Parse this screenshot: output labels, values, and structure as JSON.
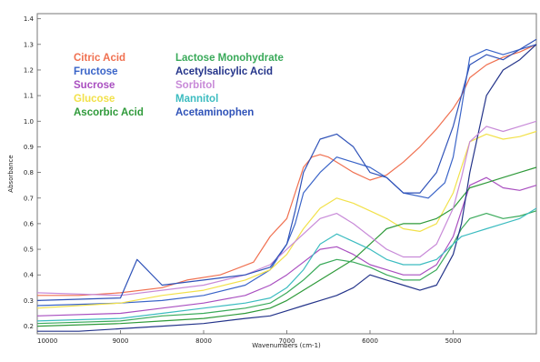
{
  "chart_data": {
    "type": "line",
    "title": "",
    "xlabel": "Wavenumbers (cm-1)",
    "ylabel": "Absorbance",
    "xlim": [
      10000,
      4000
    ],
    "ylim": [
      0.17,
      1.42
    ],
    "x_reversed": true,
    "grid": false,
    "legend_position": "top-left",
    "x_ticks": [
      10000,
      9000,
      8000,
      7000,
      6000,
      5000
    ],
    "x_tick_labels": [
      "10000",
      "9000",
      "8000",
      "7000",
      "6000",
      "5000"
    ],
    "y_ticks": [
      0.2,
      0.3,
      0.4,
      0.5,
      0.6,
      0.7,
      0.8,
      0.9,
      1.0,
      1.1,
      1.2,
      1.3,
      1.4
    ],
    "y_tick_labels": [
      "0.2",
      "0.3",
      "0.4",
      "0.5",
      "0.6",
      "0.7",
      "0.8",
      "0.9",
      "1.0",
      "1.1",
      "1.2",
      "1.3",
      "1.4"
    ],
    "series": [
      {
        "name": "Citric Acid",
        "color": "#f07050",
        "x": [
          10000,
          9500,
          9000,
          8500,
          8200,
          7800,
          7400,
          7200,
          7000,
          6900,
          6800,
          6700,
          6600,
          6500,
          6400,
          6200,
          6000,
          5900,
          5800,
          5600,
          5400,
          5200,
          5000,
          4900,
          4800,
          4600,
          4400,
          4200,
          4000
        ],
        "y": [
          0.32,
          0.32,
          0.33,
          0.35,
          0.38,
          0.4,
          0.45,
          0.55,
          0.62,
          0.72,
          0.82,
          0.86,
          0.87,
          0.86,
          0.84,
          0.8,
          0.77,
          0.78,
          0.79,
          0.84,
          0.9,
          0.97,
          1.05,
          1.1,
          1.17,
          1.22,
          1.25,
          1.27,
          1.3
        ]
      },
      {
        "name": "Fructose",
        "color": "#3a64c8",
        "x": [
          10000,
          9000,
          8500,
          8000,
          7500,
          7200,
          7000,
          6900,
          6800,
          6600,
          6400,
          6200,
          6000,
          5800,
          5600,
          5300,
          5100,
          5000,
          4900,
          4850,
          4800,
          4600,
          4400,
          4200,
          4000
        ],
        "y": [
          0.28,
          0.29,
          0.3,
          0.32,
          0.36,
          0.42,
          0.52,
          0.6,
          0.72,
          0.8,
          0.86,
          0.84,
          0.82,
          0.78,
          0.72,
          0.7,
          0.76,
          0.86,
          1.05,
          1.15,
          1.25,
          1.28,
          1.26,
          1.28,
          1.3
        ]
      },
      {
        "name": "Sucrose",
        "color": "#a94fc0",
        "x": [
          10000,
          9000,
          8500,
          8000,
          7500,
          7200,
          7000,
          6800,
          6600,
          6400,
          6200,
          6000,
          5800,
          5600,
          5400,
          5200,
          5000,
          4900,
          4800,
          4600,
          4400,
          4200,
          4000
        ],
        "y": [
          0.24,
          0.25,
          0.27,
          0.29,
          0.32,
          0.36,
          0.4,
          0.45,
          0.5,
          0.51,
          0.48,
          0.44,
          0.42,
          0.4,
          0.4,
          0.44,
          0.55,
          0.65,
          0.75,
          0.78,
          0.74,
          0.73,
          0.75
        ]
      },
      {
        "name": "Glucose",
        "color": "#f2e14a",
        "x": [
          10000,
          9000,
          8500,
          8000,
          7500,
          7200,
          7000,
          6800,
          6600,
          6400,
          6200,
          6000,
          5800,
          5600,
          5400,
          5200,
          5000,
          4900,
          4800,
          4600,
          4400,
          4200,
          4000
        ],
        "y": [
          0.27,
          0.29,
          0.32,
          0.34,
          0.38,
          0.42,
          0.48,
          0.58,
          0.66,
          0.7,
          0.68,
          0.65,
          0.62,
          0.58,
          0.57,
          0.6,
          0.72,
          0.82,
          0.92,
          0.95,
          0.93,
          0.94,
          0.96
        ]
      },
      {
        "name": "Ascorbic Acid",
        "color": "#2f9a3a",
        "x": [
          10000,
          9000,
          8500,
          8000,
          7500,
          7200,
          7000,
          6800,
          6600,
          6400,
          6200,
          6000,
          5800,
          5600,
          5400,
          5200,
          5000,
          4900,
          4800,
          4600,
          4400,
          4200,
          4000
        ],
        "y": [
          0.2,
          0.21,
          0.22,
          0.23,
          0.25,
          0.27,
          0.3,
          0.34,
          0.38,
          0.42,
          0.46,
          0.52,
          0.58,
          0.6,
          0.6,
          0.62,
          0.66,
          0.7,
          0.74,
          0.76,
          0.78,
          0.8,
          0.82
        ]
      },
      {
        "name": "Lactose Monohydrate",
        "color": "#3aaa5a",
        "x": [
          10000,
          9000,
          8500,
          8000,
          7500,
          7200,
          7000,
          6800,
          6600,
          6400,
          6200,
          6000,
          5800,
          5600,
          5400,
          5200,
          5000,
          4900,
          4800,
          4600,
          4400,
          4200,
          4000
        ],
        "y": [
          0.21,
          0.22,
          0.24,
          0.25,
          0.27,
          0.29,
          0.33,
          0.38,
          0.44,
          0.46,
          0.45,
          0.43,
          0.4,
          0.38,
          0.38,
          0.42,
          0.52,
          0.58,
          0.62,
          0.64,
          0.62,
          0.63,
          0.65
        ]
      },
      {
        "name": "Acetylsalicylic Acid",
        "color": "#24348a",
        "x": [
          10000,
          9500,
          9000,
          8500,
          8000,
          7500,
          7200,
          7000,
          6800,
          6600,
          6400,
          6200,
          6000,
          5800,
          5600,
          5400,
          5200,
          5000,
          4900,
          4800,
          4600,
          4400,
          4200,
          4000
        ],
        "y": [
          0.18,
          0.18,
          0.19,
          0.2,
          0.21,
          0.23,
          0.24,
          0.26,
          0.28,
          0.3,
          0.32,
          0.35,
          0.4,
          0.38,
          0.36,
          0.34,
          0.36,
          0.48,
          0.6,
          0.8,
          1.1,
          1.2,
          1.24,
          1.3
        ]
      },
      {
        "name": "Sorbitol",
        "color": "#c88ad8",
        "x": [
          10000,
          9000,
          8500,
          8000,
          7500,
          7200,
          7000,
          6800,
          6600,
          6400,
          6200,
          6000,
          5800,
          5600,
          5400,
          5200,
          5000,
          4900,
          4800,
          4600,
          4400,
          4200,
          4000
        ],
        "y": [
          0.33,
          0.32,
          0.34,
          0.36,
          0.4,
          0.44,
          0.5,
          0.56,
          0.62,
          0.64,
          0.6,
          0.55,
          0.5,
          0.47,
          0.47,
          0.52,
          0.66,
          0.78,
          0.92,
          0.98,
          0.96,
          0.98,
          1.0
        ]
      },
      {
        "name": "Mannitol",
        "color": "#3cbcc0",
        "x": [
          10000,
          9000,
          8500,
          8000,
          7500,
          7200,
          7000,
          6800,
          6600,
          6400,
          6200,
          6000,
          5800,
          5600,
          5400,
          5200,
          5000,
          4900,
          4800,
          4600,
          4400,
          4200,
          4000
        ],
        "y": [
          0.22,
          0.23,
          0.25,
          0.27,
          0.29,
          0.31,
          0.35,
          0.42,
          0.52,
          0.56,
          0.53,
          0.5,
          0.46,
          0.44,
          0.44,
          0.46,
          0.52,
          0.55,
          0.56,
          0.58,
          0.6,
          0.62,
          0.66
        ]
      },
      {
        "name": "Acetaminophen",
        "color": "#2f52b8",
        "x": [
          10000,
          9000,
          8800,
          8500,
          8000,
          7500,
          7200,
          7000,
          6900,
          6800,
          6600,
          6400,
          6200,
          6000,
          5800,
          5600,
          5400,
          5200,
          5000,
          4900,
          4800,
          4600,
          4400,
          4200,
          4000
        ],
        "y": [
          0.3,
          0.31,
          0.46,
          0.36,
          0.38,
          0.4,
          0.43,
          0.52,
          0.65,
          0.8,
          0.93,
          0.95,
          0.9,
          0.8,
          0.78,
          0.72,
          0.72,
          0.8,
          0.98,
          1.1,
          1.22,
          1.26,
          1.24,
          1.28,
          1.32
        ]
      }
    ]
  }
}
